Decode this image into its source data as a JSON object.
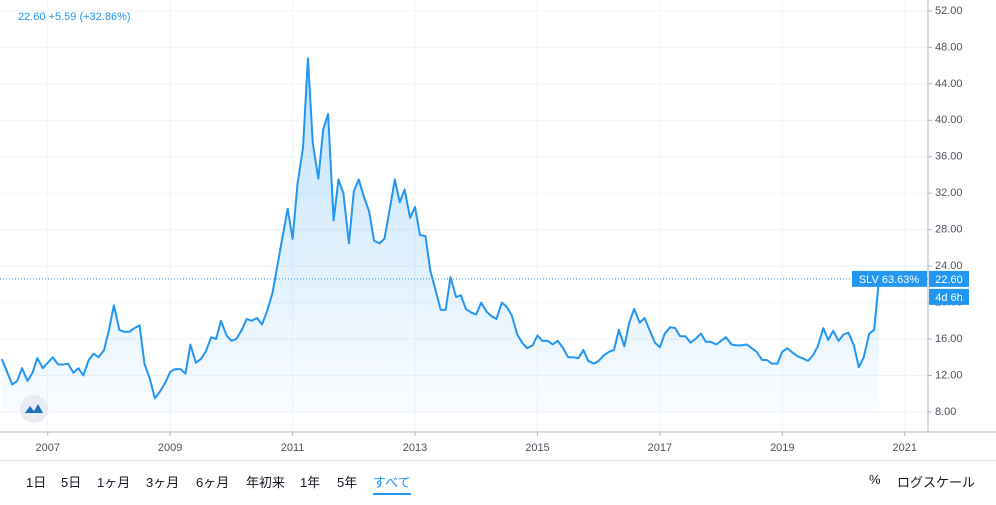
{
  "chart_data": {
    "type": "line",
    "header": "22.60 +5.59 (+32.86%)",
    "x": [
      2006.25,
      2006.33,
      2006.42,
      2006.5,
      2006.58,
      2006.67,
      2006.75,
      2006.83,
      2006.92,
      2007,
      2007.08,
      2007.17,
      2007.25,
      2007.33,
      2007.42,
      2007.5,
      2007.58,
      2007.67,
      2007.75,
      2007.83,
      2007.92,
      2008,
      2008.08,
      2008.17,
      2008.25,
      2008.33,
      2008.42,
      2008.5,
      2008.58,
      2008.67,
      2008.75,
      2008.83,
      2008.92,
      2009,
      2009.08,
      2009.17,
      2009.25,
      2009.33,
      2009.42,
      2009.5,
      2009.58,
      2009.67,
      2009.75,
      2009.83,
      2009.92,
      2010,
      2010.08,
      2010.17,
      2010.25,
      2010.33,
      2010.42,
      2010.5,
      2010.58,
      2010.67,
      2010.75,
      2010.83,
      2010.92,
      2011,
      2011.08,
      2011.17,
      2011.25,
      2011.33,
      2011.42,
      2011.5,
      2011.58,
      2011.67,
      2011.75,
      2011.83,
      2011.92,
      2012,
      2012.08,
      2012.17,
      2012.25,
      2012.33,
      2012.42,
      2012.5,
      2012.58,
      2012.67,
      2012.75,
      2012.83,
      2012.92,
      2013,
      2013.08,
      2013.17,
      2013.25,
      2013.33,
      2013.42,
      2013.5,
      2013.58,
      2013.67,
      2013.75,
      2013.83,
      2013.92,
      2014,
      2014.08,
      2014.17,
      2014.25,
      2014.33,
      2014.42,
      2014.5,
      2014.58,
      2014.67,
      2014.75,
      2014.83,
      2014.92,
      2015,
      2015.08,
      2015.17,
      2015.25,
      2015.33,
      2015.42,
      2015.5,
      2015.58,
      2015.67,
      2015.75,
      2015.83,
      2015.92,
      2016,
      2016.08,
      2016.17,
      2016.25,
      2016.33,
      2016.42,
      2016.5,
      2016.58,
      2016.67,
      2016.75,
      2016.83,
      2016.92,
      2017,
      2017.08,
      2017.17,
      2017.25,
      2017.33,
      2017.42,
      2017.5,
      2017.58,
      2017.67,
      2017.75,
      2017.83,
      2017.92,
      2018,
      2018.08,
      2018.17,
      2018.25,
      2018.33,
      2018.42,
      2018.5,
      2018.58,
      2018.67,
      2018.75,
      2018.83,
      2018.92,
      2019,
      2019.08,
      2019.17,
      2019.25,
      2019.33,
      2019.42,
      2019.5,
      2019.58,
      2019.67,
      2019.75,
      2019.83,
      2019.92,
      2020,
      2020.08,
      2020.17,
      2020.25,
      2020.33,
      2020.42,
      2020.5,
      2020.58
    ],
    "series": [
      {
        "name": "SLV",
        "color": "#2196f3",
        "values": [
          13.8,
          12.5,
          11.0,
          11.4,
          12.8,
          11.4,
          12.3,
          13.9,
          12.8,
          13.4,
          14.0,
          13.2,
          13.2,
          13.3,
          12.3,
          12.8,
          12.0,
          13.7,
          14.4,
          14.0,
          14.8,
          17.0,
          19.7,
          17.0,
          16.8,
          16.8,
          17.2,
          17.5,
          13.3,
          11.6,
          9.5,
          10.2,
          11.2,
          12.4,
          12.7,
          12.7,
          12.2,
          15.4,
          13.4,
          13.8,
          14.6,
          16.2,
          16.0,
          18.0,
          16.4,
          15.8,
          16.0,
          17.0,
          18.2,
          18.0,
          18.3,
          17.6,
          19.0,
          21.0,
          24.0,
          27.0,
          30.3,
          27.0,
          33.0,
          37.0,
          46.8,
          37.5,
          33.6,
          39.0,
          40.7,
          29.0,
          33.5,
          32.0,
          26.5,
          32.2,
          33.5,
          31.5,
          30.0,
          26.8,
          26.5,
          27.0,
          30.0,
          33.5,
          31.0,
          32.4,
          29.3,
          30.5,
          27.4,
          27.3,
          23.5,
          21.5,
          19.2,
          19.2,
          22.8,
          20.6,
          20.8,
          19.3,
          18.9,
          18.7,
          20.0,
          19.0,
          18.5,
          18.2,
          20.0,
          19.5,
          18.6,
          16.5,
          15.6,
          15.0,
          15.3,
          16.4,
          15.8,
          15.8,
          15.4,
          15.8,
          15.0,
          14.0,
          14.0,
          13.9,
          14.8,
          13.6,
          13.3,
          13.6,
          14.2,
          14.6,
          14.8,
          17.0,
          15.2,
          17.8,
          19.3,
          17.8,
          18.3,
          17.0,
          15.6,
          15.1,
          16.6,
          17.3,
          17.2,
          16.3,
          16.3,
          15.6,
          16.0,
          16.6,
          15.7,
          15.7,
          15.4,
          15.8,
          16.2,
          15.4,
          15.3,
          15.3,
          15.4,
          15.0,
          14.6,
          13.7,
          13.7,
          13.3,
          13.3,
          14.6,
          15.0,
          14.5,
          14.1,
          13.9,
          13.6,
          14.2,
          15.2,
          17.2,
          15.9,
          16.9,
          15.8,
          16.5,
          16.7,
          15.3,
          12.9,
          14.0,
          16.6,
          17.0,
          22.6
        ]
      }
    ],
    "last_change": "63.63%",
    "last_price_label": "22.60",
    "countdown": "4d 6h",
    "xlim": [
      2006.22,
      2021.38
    ],
    "xticks": [
      2007,
      2009,
      2011,
      2013,
      2015,
      2017,
      2019,
      2021
    ],
    "ylim": [
      5.8,
      53.2
    ],
    "yticks": [
      {
        "value": 8,
        "label": "8.00"
      },
      {
        "value": 12,
        "label": "12.00"
      },
      {
        "value": 16,
        "label": "16.00"
      },
      {
        "value": 20,
        "label": "20.00"
      },
      {
        "value": 24,
        "label": "24.00"
      },
      {
        "value": 28,
        "label": "28.00"
      },
      {
        "value": 32,
        "label": "32.00"
      },
      {
        "value": 36,
        "label": "36.00"
      },
      {
        "value": 40,
        "label": "40.00"
      },
      {
        "value": 44,
        "label": "44.00"
      },
      {
        "value": 48,
        "label": "48.00"
      },
      {
        "value": 52,
        "label": "52.00"
      }
    ],
    "grid": true
  },
  "toolbar": {
    "ranges": [
      "1日",
      "5日",
      "1ヶ月",
      "3ヶ月",
      "6ヶ月",
      "年初来",
      "1年",
      "5年",
      "すべて"
    ],
    "active": 8,
    "percent": "%",
    "log_scale": "ログスケール"
  }
}
